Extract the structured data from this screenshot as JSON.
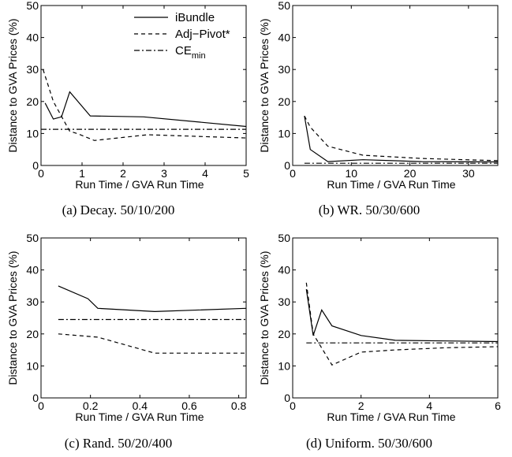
{
  "legend": {
    "items": [
      {
        "label": "iBundle",
        "style": "solid"
      },
      {
        "label": "Adj−Pivot*",
        "style": "dashed"
      },
      {
        "label": "CE",
        "sub": "min",
        "style": "dashdot"
      }
    ]
  },
  "chart_data": [
    {
      "type": "line",
      "caption": "(a) Decay. 50/10/200",
      "xlabel": "Run Time / GVA Run Time",
      "ylabel": "Distance to GVA Prices (%)",
      "xlim": [
        0,
        5
      ],
      "ylim": [
        0,
        50
      ],
      "xticks": [
        "0",
        "1",
        "2",
        "3",
        "4",
        "5"
      ],
      "yticks": [
        "0",
        "10",
        "20",
        "30",
        "40",
        "50"
      ],
      "series": [
        {
          "name": "iBundle",
          "style": "solid",
          "x": [
            0.1,
            0.3,
            0.5,
            0.7,
            1.2,
            2.5,
            5.0
          ],
          "y": [
            19.5,
            14.5,
            15.2,
            23,
            15.5,
            15.2,
            12.2
          ]
        },
        {
          "name": "Adj−Pivot*",
          "style": "dashed",
          "x": [
            0.05,
            0.3,
            0.7,
            0.9,
            1.3,
            2.6,
            5.0
          ],
          "y": [
            30,
            20,
            10.7,
            9.9,
            7.8,
            9.6,
            8.6
          ]
        },
        {
          "name": "CE",
          "style": "dashdot",
          "x": [
            0,
            5
          ],
          "y": [
            11.3,
            11.3
          ]
        }
      ]
    },
    {
      "type": "line",
      "caption": "(b) WR. 50/30/600",
      "xlabel": "Run Time / GVA Run Time",
      "ylabel": "Distance to GVA Prices (%)",
      "xlim": [
        0,
        35
      ],
      "ylim": [
        0,
        50
      ],
      "xticks": [
        "0",
        "10",
        "20",
        "30"
      ],
      "yticks": [
        "0",
        "10",
        "20",
        "30",
        "40",
        "50"
      ],
      "series": [
        {
          "name": "iBundle",
          "style": "solid",
          "x": [
            2,
            3,
            6,
            12,
            22,
            35
          ],
          "y": [
            15.5,
            5,
            1.2,
            1.8,
            1.2,
            1.1
          ]
        },
        {
          "name": "Adj−Pivot*",
          "style": "dashed",
          "x": [
            2,
            3,
            6,
            12,
            22,
            35
          ],
          "y": [
            15.5,
            12,
            6,
            3.2,
            2.2,
            1.5
          ]
        },
        {
          "name": "CE",
          "style": "dashdot",
          "x": [
            2,
            35
          ],
          "y": [
            0.7,
            0.7
          ]
        }
      ]
    },
    {
      "type": "line",
      "caption": "(c) Rand. 50/20/400",
      "xlabel": "Run Time / GVA Run Time",
      "ylabel": "Distance to GVA Prices (%)",
      "xlim": [
        0,
        0.83
      ],
      "ylim": [
        0,
        50
      ],
      "xticks": [
        "0",
        "0.2",
        "0.4",
        "0.6",
        "0.8"
      ],
      "yticks": [
        "0",
        "10",
        "20",
        "30",
        "40",
        "50"
      ],
      "series": [
        {
          "name": "iBundle",
          "style": "solid",
          "x": [
            0.07,
            0.19,
            0.23,
            0.46,
            0.83
          ],
          "y": [
            35,
            31,
            28,
            27,
            28
          ]
        },
        {
          "name": "Adj−Pivot*",
          "style": "dashed",
          "x": [
            0.07,
            0.23,
            0.46,
            0.83
          ],
          "y": [
            20,
            19,
            14,
            14
          ]
        },
        {
          "name": "CE",
          "style": "dashdot",
          "x": [
            0.07,
            0.83
          ],
          "y": [
            24.5,
            24.5
          ]
        }
      ]
    },
    {
      "type": "line",
      "caption": "(d) Uniform. 50/30/600",
      "xlabel": "Run Time / GVA Run Time",
      "ylabel": "Distance to GVA Prices (%)",
      "xlim": [
        0,
        6
      ],
      "ylim": [
        0,
        50
      ],
      "xticks": [
        "0",
        "2",
        "4",
        "6"
      ],
      "yticks": [
        "0",
        "10",
        "20",
        "30",
        "40",
        "50"
      ],
      "series": [
        {
          "name": "iBundle",
          "style": "solid",
          "x": [
            0.4,
            0.6,
            0.85,
            1.15,
            2.0,
            3.0,
            4.5,
            6.0
          ],
          "y": [
            34,
            19.5,
            27.5,
            22.5,
            19.5,
            18,
            17.8,
            17.6
          ]
        },
        {
          "name": "Adj−Pivot*",
          "style": "dashed",
          "x": [
            0.4,
            0.6,
            1.15,
            2.0,
            3.0,
            4.5,
            6.0
          ],
          "y": [
            36,
            20,
            10.3,
            14.3,
            15,
            15.7,
            16
          ]
        },
        {
          "name": "CE",
          "style": "dashdot",
          "x": [
            0.4,
            6.0
          ],
          "y": [
            17.2,
            17.2
          ]
        }
      ]
    }
  ]
}
